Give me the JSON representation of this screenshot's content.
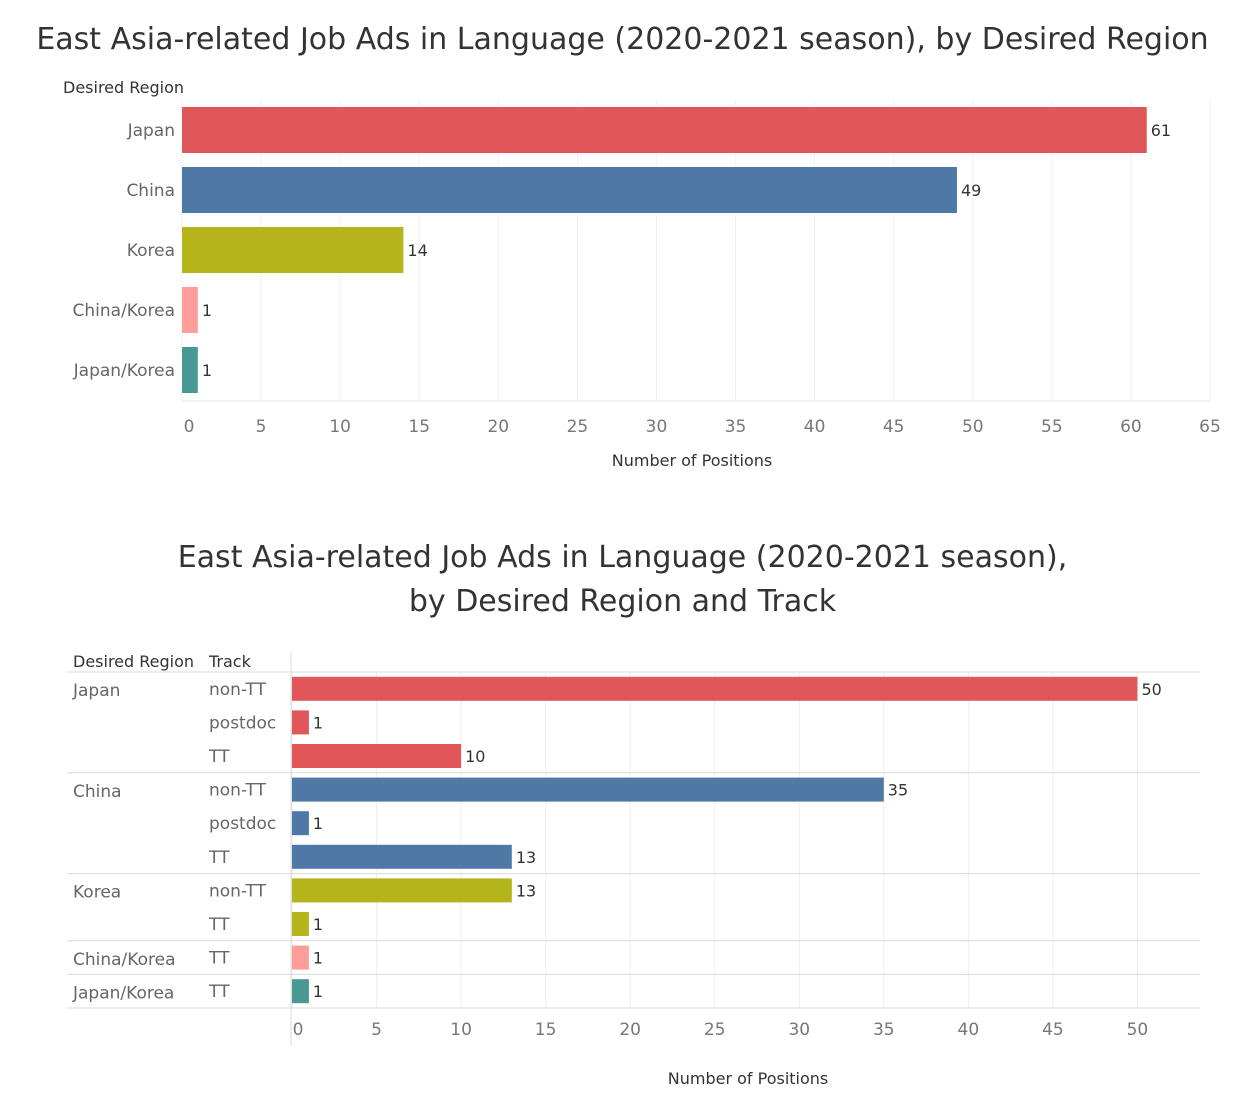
{
  "chart_data": [
    {
      "type": "bar",
      "orientation": "horizontal",
      "title": "East Asia-related Job Ads in Language (2020-2021 season), by Desired Region",
      "row_header": "Desired Region",
      "xlabel": "Number of Positions",
      "xlim": [
        0,
        65
      ],
      "xticks": [
        0,
        5,
        10,
        15,
        20,
        25,
        30,
        35,
        40,
        45,
        50,
        55,
        60,
        65
      ],
      "grid": "vertical gridlines",
      "categories": [
        "Japan",
        "China",
        "Korea",
        "China/Korea",
        "Japan/Korea"
      ],
      "values": [
        61,
        49,
        14,
        1,
        1
      ],
      "colors": [
        "#e15759",
        "#4e79a7",
        "#b5b51b",
        "#ff9d9a",
        "#499894"
      ]
    },
    {
      "type": "bar",
      "orientation": "horizontal",
      "title_lines": [
        "East Asia-related Job Ads in Language (2020-2021 season),",
        "by Desired Region and Track"
      ],
      "row_headers": [
        "Desired Region",
        "Track"
      ],
      "xlabel": "Number of Positions",
      "xlim": [
        0,
        50
      ],
      "xticks": [
        0,
        5,
        10,
        15,
        20,
        25,
        30,
        35,
        40,
        45,
        50
      ],
      "grid": "vertical gridlines",
      "groups": [
        {
          "region": "Japan",
          "color": "#e15759",
          "rows": [
            {
              "track": "non-TT",
              "value": 50
            },
            {
              "track": "postdoc",
              "value": 1
            },
            {
              "track": "TT",
              "value": 10
            }
          ]
        },
        {
          "region": "China",
          "color": "#4e79a7",
          "rows": [
            {
              "track": "non-TT",
              "value": 35
            },
            {
              "track": "postdoc",
              "value": 1
            },
            {
              "track": "TT",
              "value": 13
            }
          ]
        },
        {
          "region": "Korea",
          "color": "#b5b51b",
          "rows": [
            {
              "track": "non-TT",
              "value": 13
            },
            {
              "track": "TT",
              "value": 1
            }
          ]
        },
        {
          "region": "China/Korea",
          "color": "#ff9d9a",
          "rows": [
            {
              "track": "TT",
              "value": 1
            }
          ]
        },
        {
          "region": "Japan/Korea",
          "color": "#499894",
          "rows": [
            {
              "track": "TT",
              "value": 1
            }
          ]
        }
      ]
    }
  ]
}
